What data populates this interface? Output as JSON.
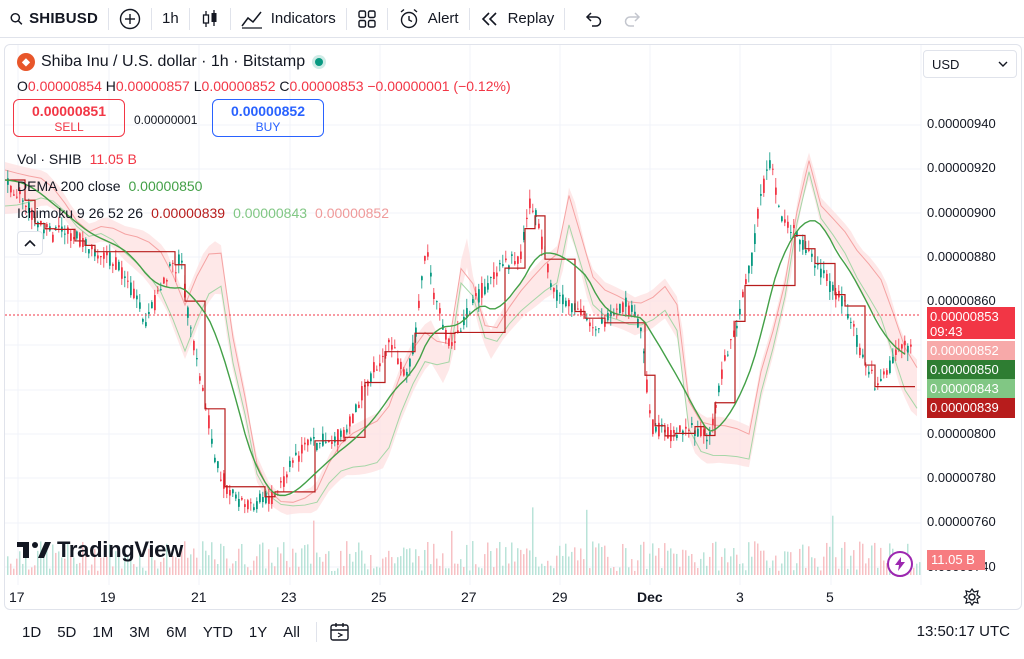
{
  "toolbar": {
    "symbol": "SHIBUSD",
    "interval": "1h",
    "indicators_label": "Indicators",
    "alert_label": "Alert",
    "replay_label": "Replay"
  },
  "legend": {
    "title": "Shiba Inu / U.S. dollar · 1h · Bitstamp",
    "ohlc": {
      "o_label": "O",
      "o": "0.00000854",
      "h_label": "H",
      "h": "0.00000857",
      "l_label": "L",
      "l": "0.00000852",
      "c_label": "C",
      "c": "0.00000853",
      "change": "−0.00000001 (−0.12%)"
    }
  },
  "trade": {
    "sell_price": "0.00000851",
    "sell_label": "SELL",
    "spread": "0.00000001",
    "buy_price": "0.00000852",
    "buy_label": "BUY"
  },
  "indicators": {
    "vol_label": "Vol · SHIB",
    "vol_value": "11.05 B",
    "dema_label": "DEMA 200 close",
    "dema_value": "0.00000850",
    "ichimoku_label": "Ichimoku 9 26 52 26",
    "ichimoku_v1": "0.00000839",
    "ichimoku_v2": "0.00000843",
    "ichimoku_v3": "0.00000852"
  },
  "currency": "USD",
  "price_axis": [
    "0.00000940",
    "0.00000920",
    "0.00000900",
    "0.00000880",
    "0.00000860",
    "0.00000800",
    "0.00000780",
    "0.00000760",
    "0.00000740"
  ],
  "price_tags": {
    "last": "0.00000853",
    "countdown": "09:43",
    "t2": "0.00000852",
    "t3": "0.00000850",
    "t4": "0.00000843",
    "t5": "0.00000839"
  },
  "volume_tag": "11.05 B",
  "brand": "TradingView",
  "time_axis": [
    "17",
    "19",
    "21",
    "23",
    "25",
    "27",
    "29",
    "Dec",
    "3",
    "5"
  ],
  "ranges": [
    "1D",
    "5D",
    "1M",
    "3M",
    "6M",
    "YTD",
    "1Y",
    "All"
  ],
  "clock": "13:50:17 UTC",
  "colors": {
    "up": "#089981",
    "down": "#f23645",
    "dema": "#43a047",
    "tenkan": "#b71c1c",
    "cloud_bull": "#c8e6c9",
    "cloud_bear": "#ffcdd2"
  }
}
